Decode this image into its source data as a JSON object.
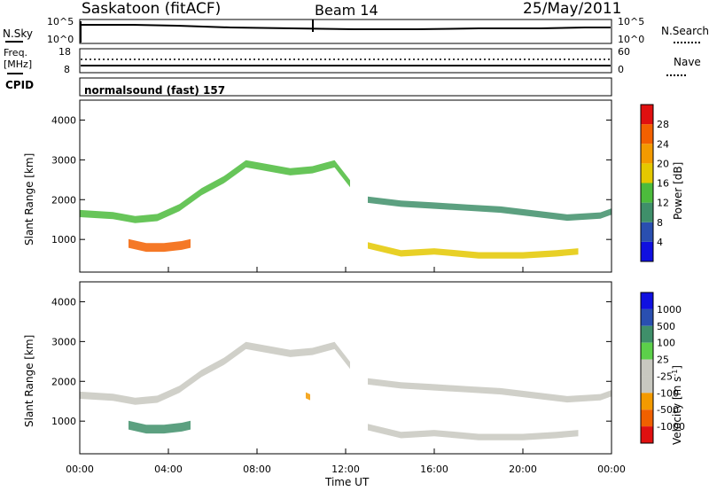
{
  "header": {
    "station": "Saskatoon (fitACF)",
    "beam": "Beam 14",
    "date": "25/May/2011"
  },
  "top_panel": {
    "left_label": "N.Sky",
    "right_label": "N.Search",
    "y_top_tick": "10^5",
    "y_bottom_tick": "10^0"
  },
  "freq_panel": {
    "left_label_1": "Freq.",
    "left_label_2": "[MHz]",
    "right_label": "Nave",
    "left_ticks": [
      "18",
      "8"
    ],
    "right_ticks": [
      "60",
      "0"
    ]
  },
  "cpid_panel": {
    "label": "CPID",
    "program": "normalsound (fast) 157"
  },
  "colors": {
    "power": [
      "#1010e0",
      "#2a4fb0",
      "#3f8f6a",
      "#4cbb3c",
      "#e4c800",
      "#f39a00",
      "#f36000",
      "#e01010"
    ],
    "velocity": [
      "#e01010",
      "#f06000",
      "#f39a00",
      "#c8c8c0",
      "#c8c8c0",
      "#5cd04a",
      "#3f8f6a",
      "#2a4fb0",
      "#1010e0"
    ]
  },
  "chart_data": [
    {
      "type": "heatmap",
      "quantity": "Power",
      "ylabel": "Slant Range [km]",
      "ylim": [
        180,
        4500
      ],
      "yticks": [
        "1000",
        "2000",
        "3000",
        "4000"
      ],
      "xlim": [
        0,
        24
      ],
      "colorbar_label": "Power [dB]",
      "colorbar_ticks": [
        "4",
        "8",
        "12",
        "16",
        "20",
        "24",
        "28"
      ],
      "colorbar_range": [
        0,
        32
      ],
      "echo_bands": [
        {
          "t": [
            0.0,
            1.5,
            2.5,
            3.5,
            4.5,
            5.5,
            6.5,
            7.5,
            8.5,
            9.5,
            10.5,
            11.5,
            12.2
          ],
          "r": [
            1650,
            1600,
            1500,
            1550,
            1800,
            2200,
            2500,
            2900,
            2800,
            2700,
            2750,
            2900,
            2400
          ],
          "width": 180,
          "power": 12
        },
        {
          "t": [
            13.0,
            14.5,
            16.0,
            17.5,
            19.0,
            20.5,
            22.0,
            23.5,
            24.0
          ],
          "r": [
            2000,
            1900,
            1850,
            1800,
            1750,
            1650,
            1550,
            1600,
            1700
          ],
          "width": 160,
          "power": 10
        },
        {
          "t": [
            13.0,
            14.5,
            16.0,
            18.0,
            20.0,
            21.5,
            22.5
          ],
          "r": [
            850,
            650,
            700,
            600,
            600,
            650,
            700
          ],
          "width": 160,
          "power": 16
        },
        {
          "t": [
            2.2,
            3.0,
            3.8,
            4.6,
            5.0
          ],
          "r": [
            900,
            800,
            800,
            850,
            900
          ],
          "width": 220,
          "power": 26
        }
      ]
    },
    {
      "type": "heatmap",
      "quantity": "Velocity",
      "ylabel": "Slant Range [km]",
      "ylim": [
        180,
        4500
      ],
      "yticks": [
        "1000",
        "2000",
        "3000",
        "4000"
      ],
      "xlim": [
        0,
        24
      ],
      "xticks": [
        "00:00",
        "04:00",
        "08:00",
        "12:00",
        "16:00",
        "20:00",
        "00:00"
      ],
      "xlabel": "Time UT",
      "colorbar_label": "Velocity [m s^-1]",
      "colorbar_ticks": [
        "1000",
        "500",
        "100",
        "25",
        "-25",
        "-100",
        "-500",
        "-1000"
      ],
      "echo_bands": [
        {
          "t": [
            0.0,
            1.5,
            2.5,
            3.5,
            4.5,
            5.5,
            6.5,
            7.5,
            8.5,
            9.5,
            10.5,
            11.5,
            12.2
          ],
          "r": [
            1650,
            1600,
            1500,
            1550,
            1800,
            2200,
            2500,
            2900,
            2800,
            2700,
            2750,
            2900,
            2400
          ],
          "width": 180,
          "velocity": 0
        },
        {
          "t": [
            13.0,
            14.5,
            16.0,
            17.5,
            19.0,
            20.5,
            22.0,
            23.5,
            24.0
          ],
          "r": [
            2000,
            1900,
            1850,
            1800,
            1750,
            1650,
            1550,
            1600,
            1700
          ],
          "width": 160,
          "velocity": 0
        },
        {
          "t": [
            13.0,
            14.5,
            16.0,
            18.0,
            20.0,
            21.5,
            22.5
          ],
          "r": [
            850,
            650,
            700,
            600,
            600,
            650,
            700
          ],
          "width": 160,
          "velocity": 0
        },
        {
          "t": [
            2.2,
            3.0,
            3.8,
            4.6,
            5.0
          ],
          "r": [
            900,
            800,
            800,
            850,
            900
          ],
          "width": 220,
          "velocity": 150
        },
        {
          "t": [
            10.2,
            10.4
          ],
          "r": [
            1650,
            1600
          ],
          "width": 150,
          "velocity": -300
        }
      ]
    }
  ]
}
